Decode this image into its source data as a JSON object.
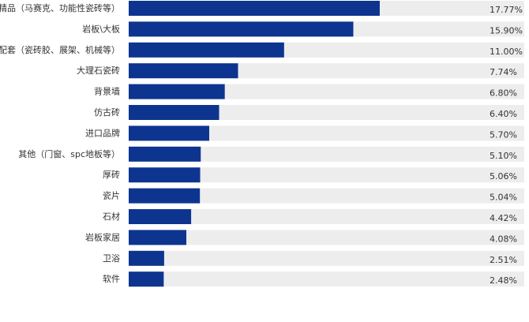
{
  "chart_data": {
    "type": "bar",
    "orientation": "horizontal",
    "title": "",
    "xlabel": "",
    "ylabel": "",
    "categories": [
      "特色精品（马赛克、功能性瓷砖等）",
      "岩板\\大板",
      "陶瓷配套（瓷砖胶、展架、机械等）",
      "大理石瓷砖",
      "背景墙",
      "仿古砖",
      "进口品牌",
      "其他（门窗、spc地板等）",
      "厚砖",
      "瓷片",
      "石材",
      "岩板家居",
      "卫浴",
      "软件"
    ],
    "values": [
      17.77,
      15.9,
      11.0,
      7.74,
      6.8,
      6.4,
      5.7,
      5.1,
      5.06,
      5.04,
      4.42,
      4.08,
      2.51,
      2.48
    ],
    "value_labels": [
      "17.77%",
      "15.90%",
      "11.00%",
      "7.74%",
      "6.80%",
      "6.40%",
      "5.70%",
      "5.10%",
      "5.06%",
      "5.04%",
      "4.42%",
      "4.08%",
      "2.51%",
      "2.48%"
    ],
    "xlim": [
      0,
      28
    ],
    "bar_color": "#0d3590",
    "track_color": "#ededed",
    "grid": false
  }
}
